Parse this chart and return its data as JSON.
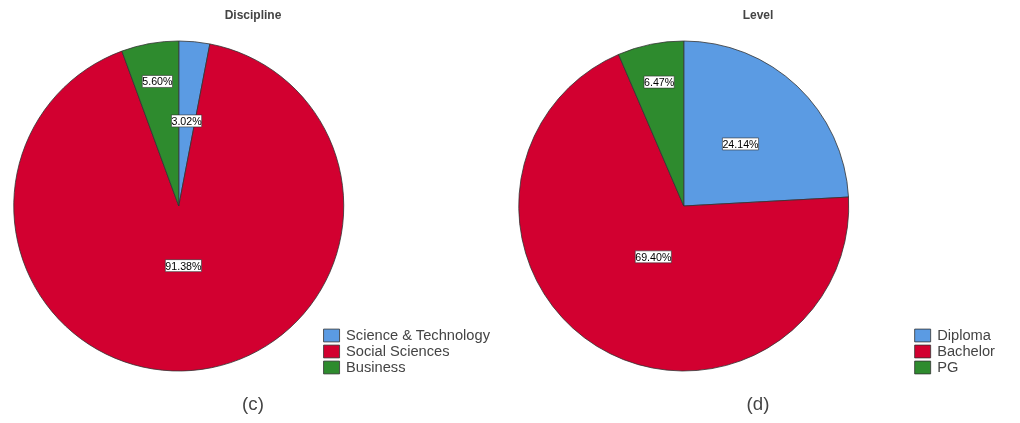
{
  "chart_data": [
    {
      "type": "pie",
      "title": "Discipline",
      "categories": [
        "Science & Technology",
        "Social Sciences",
        "Business"
      ],
      "values": [
        3.02,
        91.38,
        5.6
      ],
      "value_labels": [
        "3.02%",
        "91.38%",
        "5.60%"
      ],
      "colors": [
        "#5b9be3",
        "#d20030",
        "#2e8b2e"
      ],
      "legend": "bottom right",
      "annotations": [
        "(c)"
      ]
    },
    {
      "type": "pie",
      "title": "Level",
      "categories": [
        "Diploma",
        "Bachelor",
        "PG"
      ],
      "values": [
        24.14,
        69.4,
        6.47
      ],
      "value_labels": [
        "24.14%",
        "69.40%",
        "6.47%"
      ],
      "colors": [
        "#5b9be3",
        "#d20030",
        "#2e8b2e"
      ],
      "legend": "bottom right",
      "annotations": [
        "(d)"
      ]
    }
  ]
}
